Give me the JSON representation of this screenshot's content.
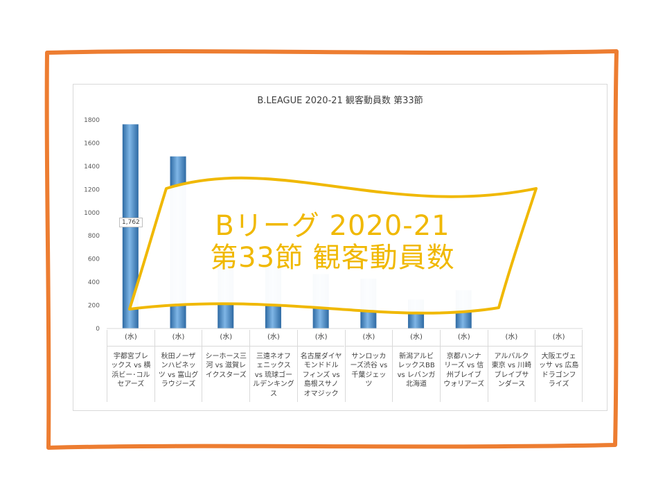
{
  "colors": {
    "frame": "#ed7d31",
    "bar": "#5b9bd5",
    "bar_dark": "#2e6aa3",
    "banner_stroke": "#f0b800",
    "banner_text": "#f0b800"
  },
  "banner": {
    "line1": "Bリーグ 2020-21",
    "line2": "第33節 観客動員数"
  },
  "chart_data": {
    "type": "bar",
    "title": "B.LEAGUE 2020-21 観客動員数 第33節",
    "ylim": [
      0,
      1800
    ],
    "yticks": [
      0,
      200,
      400,
      600,
      800,
      1000,
      1200,
      1400,
      1600,
      1800
    ],
    "grid": false,
    "categories": [
      {
        "day": "(水)",
        "teams": "宇都宮ブレックス vs 横浜ビー･コルセアーズ"
      },
      {
        "day": "(水)",
        "teams": "秋田ノーザンハピネッツ vs 富山グラウジーズ"
      },
      {
        "day": "(水)",
        "teams": "シーホース三河 vs 滋賀レイクスターズ"
      },
      {
        "day": "(水)",
        "teams": "三遠ネオフェニックス vs 琉球ゴールデンキングス"
      },
      {
        "day": "(水)",
        "teams": "名古屋ダイヤモンドドルフィンズ vs 島根スサノオマジック"
      },
      {
        "day": "(水)",
        "teams": "サンロッカーズ渋谷 vs 千葉ジェッツ"
      },
      {
        "day": "(水)",
        "teams": "新潟アルビレックスBB vs レバンガ北海道"
      },
      {
        "day": "(水)",
        "teams": "京都ハンナリーズ vs 信州ブレイブウォリアーズ"
      },
      {
        "day": "(水)",
        "teams": "アルバルク東京 vs 川崎ブレイブサンダース"
      },
      {
        "day": "(水)",
        "teams": "大阪エヴェッサ vs 広島ドラゴンフライズ"
      }
    ],
    "values": [
      1762,
      1485,
      610,
      560,
      470,
      430,
      250,
      330,
      null,
      null
    ],
    "data_labels": [
      "1,762"
    ]
  }
}
